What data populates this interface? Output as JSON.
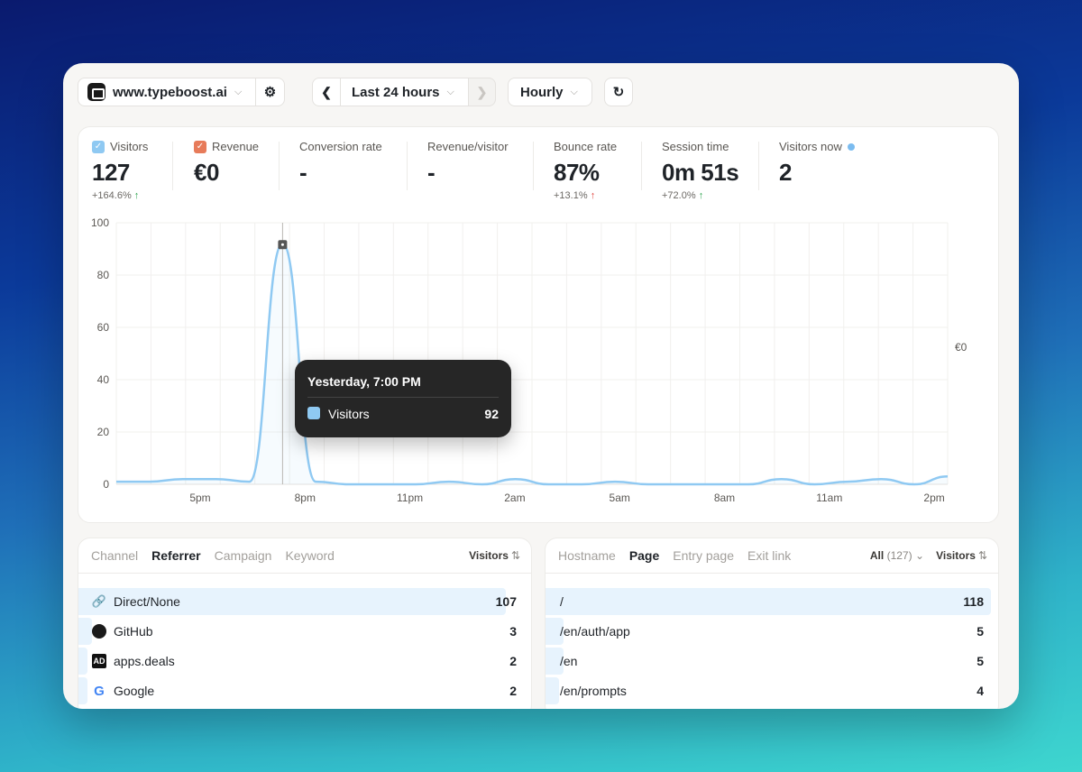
{
  "toolbar": {
    "site": "www.typeboost.ai",
    "range": "Last 24 hours",
    "interval": "Hourly"
  },
  "metrics": [
    {
      "label": "Visitors",
      "value": "127",
      "change": "+164.6%",
      "direction": "up",
      "color": "#8fc9f2",
      "checked": true
    },
    {
      "label": "Revenue",
      "value": "€0",
      "change": "",
      "color": "#e77b5a",
      "checked": true
    },
    {
      "label": "Conversion rate",
      "value": "-",
      "change": ""
    },
    {
      "label": "Revenue/visitor",
      "value": "-",
      "change": ""
    },
    {
      "label": "Bounce rate",
      "value": "87%",
      "change": "+13.1%",
      "direction": "up-bad"
    },
    {
      "label": "Session time",
      "value": "0m 51s",
      "change": "+72.0%",
      "direction": "up"
    },
    {
      "label": "Visitors now",
      "value": "2",
      "change": ""
    }
  ],
  "chart_data": {
    "type": "area",
    "x_ticks": [
      "5pm",
      "8pm",
      "11pm",
      "2am",
      "5am",
      "8am",
      "11am",
      "2pm"
    ],
    "y_ticks": [
      0,
      20,
      40,
      60,
      80,
      100
    ],
    "ylim": [
      0,
      100
    ],
    "y2_label": "€0",
    "series": [
      {
        "name": "Visitors",
        "color": "#8fc9f2",
        "values": [
          1,
          1,
          2,
          2,
          1,
          92,
          1,
          0,
          0,
          0,
          1,
          0,
          2,
          0,
          0,
          1,
          0,
          0,
          0,
          0,
          2,
          0,
          1,
          2,
          0,
          3
        ]
      }
    ],
    "highlight_index": 5
  },
  "tooltip": {
    "title": "Yesterday, 7:00 PM",
    "label": "Visitors",
    "value": "92"
  },
  "left_panel": {
    "tabs": [
      "Channel",
      "Referrer",
      "Campaign",
      "Keyword"
    ],
    "active_tab": "Referrer",
    "sort_label": "Visitors",
    "rows": [
      {
        "label": "Direct/None",
        "value": "107",
        "icon": "link-icon"
      },
      {
        "label": "GitHub",
        "value": "3",
        "icon": "github-icon"
      },
      {
        "label": "apps.deals",
        "value": "2",
        "icon": "apps-deals-icon"
      },
      {
        "label": "Google",
        "value": "2",
        "icon": "google-icon"
      }
    ]
  },
  "right_panel": {
    "tabs": [
      "Hostname",
      "Page",
      "Entry page",
      "Exit link"
    ],
    "active_tab": "Page",
    "filter_label": "All",
    "filter_count": "(127)",
    "sort_label": "Visitors",
    "rows": [
      {
        "label": "/",
        "value": "118"
      },
      {
        "label": "/en/auth/app",
        "value": "5"
      },
      {
        "label": "/en",
        "value": "5"
      },
      {
        "label": "/en/prompts",
        "value": "4"
      }
    ]
  }
}
